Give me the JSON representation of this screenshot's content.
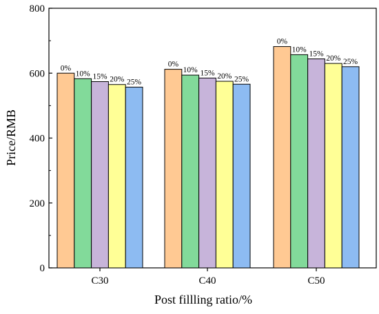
{
  "chart_data": {
    "type": "bar",
    "title": "",
    "xlabel": "Post fillling ratio/%",
    "ylabel": "Price/RMB",
    "ylim": [
      0,
      800
    ],
    "yticks": [
      0,
      200,
      400,
      600,
      800
    ],
    "grid": false,
    "categories": [
      "C30",
      "C40",
      "C50"
    ],
    "series": [
      {
        "label": "0%",
        "color": "#FFC993",
        "values": [
          600,
          612,
          682
        ]
      },
      {
        "label": "10%",
        "color": "#82DA9A",
        "values": [
          583,
          594,
          657
        ]
      },
      {
        "label": "15%",
        "color": "#C7B4DA",
        "values": [
          574,
          585,
          644
        ]
      },
      {
        "label": "20%",
        "color": "#FFFF96",
        "values": [
          565,
          575,
          630
        ]
      },
      {
        "label": "25%",
        "color": "#8DBBF2",
        "values": [
          557,
          566,
          620
        ]
      }
    ]
  }
}
